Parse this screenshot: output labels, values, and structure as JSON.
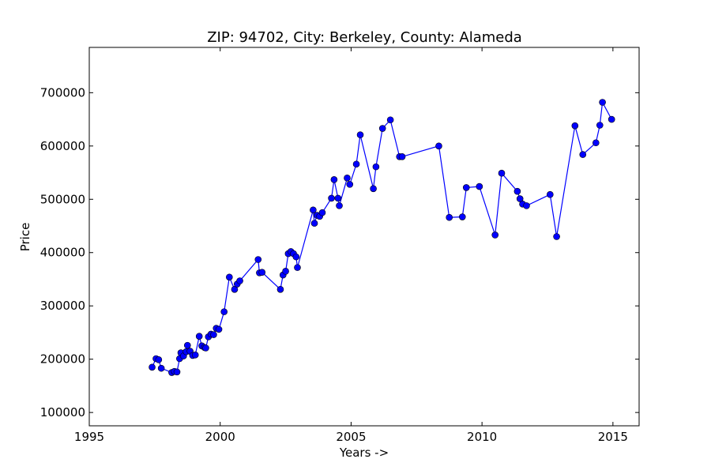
{
  "chart_data": {
    "type": "line",
    "title": "ZIP: 94702, City: Berkeley, County: Alameda",
    "xlabel": "Years ->",
    "ylabel": "Price",
    "xlim": [
      1995,
      2016
    ],
    "ylim": [
      75000,
      785000
    ],
    "xticks": [
      1995,
      2000,
      2005,
      2010,
      2015
    ],
    "yticks": [
      100000,
      200000,
      300000,
      400000,
      500000,
      600000,
      700000
    ],
    "grid": false,
    "line_color": "#0000ff",
    "marker_color": "#0000ff",
    "series": [
      {
        "x": [
          1997.4,
          1997.55,
          1997.65,
          1997.75,
          1998.15,
          1998.25,
          1998.35,
          1998.45,
          1998.5,
          1998.6,
          1998.7,
          1998.75,
          1998.85,
          1998.95,
          1999.05,
          1999.2,
          1999.3,
          1999.4,
          1999.45,
          1999.55,
          1999.65,
          1999.75,
          1999.85,
          1999.95,
          2000.15,
          2000.35,
          2000.55,
          2000.65,
          2000.75,
          2001.45,
          2001.5,
          2001.6,
          2002.3,
          2002.4,
          2002.5,
          2002.6,
          2002.7,
          2002.8,
          2002.9,
          2002.95,
          2003.55,
          2003.6,
          2003.7,
          2003.8,
          2003.9,
          2004.25,
          2004.35,
          2004.5,
          2004.55,
          2004.85,
          2004.95,
          2005.2,
          2005.35,
          2005.85,
          2005.95,
          2006.2,
          2006.5,
          2006.85,
          2006.95,
          2008.35,
          2008.75,
          2009.25,
          2009.4,
          2009.9,
          2010.5,
          2010.75,
          2011.35,
          2011.45,
          2011.55,
          2011.7,
          2012.6,
          2012.85,
          2013.55,
          2013.85,
          2014.35,
          2014.5,
          2014.6,
          2014.95
        ],
        "y": [
          185000,
          201000,
          199000,
          183000,
          175000,
          177000,
          176000,
          201000,
          212000,
          206000,
          214000,
          226000,
          215000,
          207000,
          208000,
          243000,
          225000,
          222000,
          221000,
          242000,
          247000,
          246000,
          258000,
          256000,
          289000,
          354000,
          331000,
          341000,
          347000,
          387000,
          362000,
          363000,
          331000,
          358000,
          365000,
          398000,
          402000,
          398000,
          392000,
          372000,
          480000,
          455000,
          470000,
          468000,
          475000,
          502000,
          537000,
          502000,
          488000,
          540000,
          528000,
          566000,
          621000,
          520000,
          561000,
          633000,
          649000,
          580000,
          580000,
          600000,
          466000,
          467000,
          522000,
          524000,
          433000,
          549000,
          515000,
          501000,
          491000,
          488000,
          509000,
          430000,
          638000,
          584000,
          606000,
          639000,
          682000,
          650000
        ]
      }
    ]
  }
}
